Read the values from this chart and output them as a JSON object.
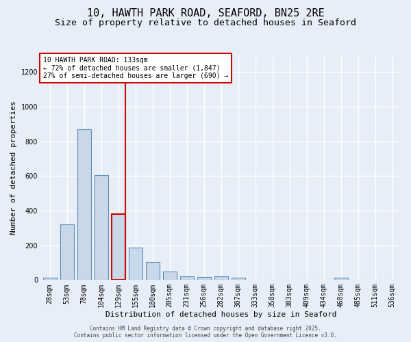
{
  "title": "10, HAWTH PARK ROAD, SEAFORD, BN25 2RE",
  "subtitle": "Size of property relative to detached houses in Seaford",
  "xlabel": "Distribution of detached houses by size in Seaford",
  "ylabel": "Number of detached properties",
  "footer_line1": "Contains HM Land Registry data © Crown copyright and database right 2025.",
  "footer_line2": "Contains public sector information licensed under the Open Government Licence v3.0.",
  "annotation_title": "10 HAWTH PARK ROAD: 133sqm",
  "annotation_line1": "← 72% of detached houses are smaller (1,847)",
  "annotation_line2": "27% of semi-detached houses are larger (690) →",
  "categories": [
    "28sqm",
    "53sqm",
    "78sqm",
    "104sqm",
    "129sqm",
    "155sqm",
    "180sqm",
    "205sqm",
    "231sqm",
    "256sqm",
    "282sqm",
    "307sqm",
    "333sqm",
    "358sqm",
    "383sqm",
    "409sqm",
    "434sqm",
    "460sqm",
    "485sqm",
    "511sqm",
    "536sqm"
  ],
  "values": [
    12,
    320,
    870,
    605,
    380,
    185,
    105,
    47,
    20,
    18,
    20,
    12,
    0,
    0,
    0,
    0,
    0,
    12,
    0,
    0,
    0
  ],
  "bar_color": "#c8d8e8",
  "bar_edge_color": "#5b8db8",
  "highlight_bar_index": 4,
  "highlight_edge_color": "#cc0000",
  "vline_color": "#cc0000",
  "annotation_box_color": "#ffffff",
  "annotation_box_edge_color": "#cc0000",
  "ylim": [
    0,
    1300
  ],
  "yticks": [
    0,
    200,
    400,
    600,
    800,
    1000,
    1200
  ],
  "bg_color": "#e8eef8",
  "plot_bg_color": "#e8eef8",
  "grid_color": "#ffffff",
  "title_fontsize": 11,
  "subtitle_fontsize": 9.5,
  "axis_label_fontsize": 8,
  "tick_fontsize": 7,
  "annotation_fontsize": 7,
  "footer_fontsize": 5.5
}
